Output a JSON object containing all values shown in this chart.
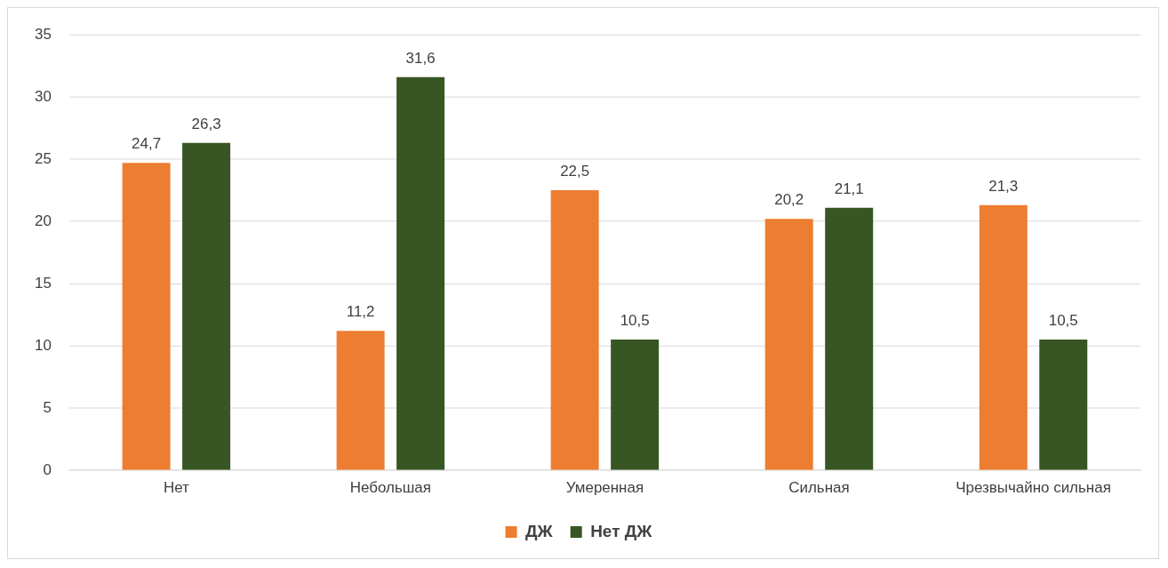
{
  "chart_data": {
    "type": "bar",
    "categories": [
      "Нет",
      "Небольшая",
      "Умеренная",
      "Сильная",
      "Чрезвычайно сильная"
    ],
    "series": [
      {
        "name": "ДЖ",
        "color": "#ed7d31",
        "values": [
          24.7,
          11.2,
          22.5,
          20.2,
          21.3
        ],
        "value_labels": [
          "24,7",
          "11,2",
          "22,5",
          "20,2",
          "21,3"
        ]
      },
      {
        "name": "Нет ДЖ",
        "color": "#375623",
        "values": [
          26.3,
          31.6,
          10.5,
          21.1,
          10.5
        ],
        "value_labels": [
          "26,3",
          "31,6",
          "10,5",
          "21,1",
          "10,5"
        ]
      }
    ],
    "ylim": [
      0,
      35
    ],
    "yticks": [
      0,
      5,
      10,
      15,
      20,
      25,
      30,
      35
    ],
    "grid": "y",
    "legend": "bottom"
  }
}
